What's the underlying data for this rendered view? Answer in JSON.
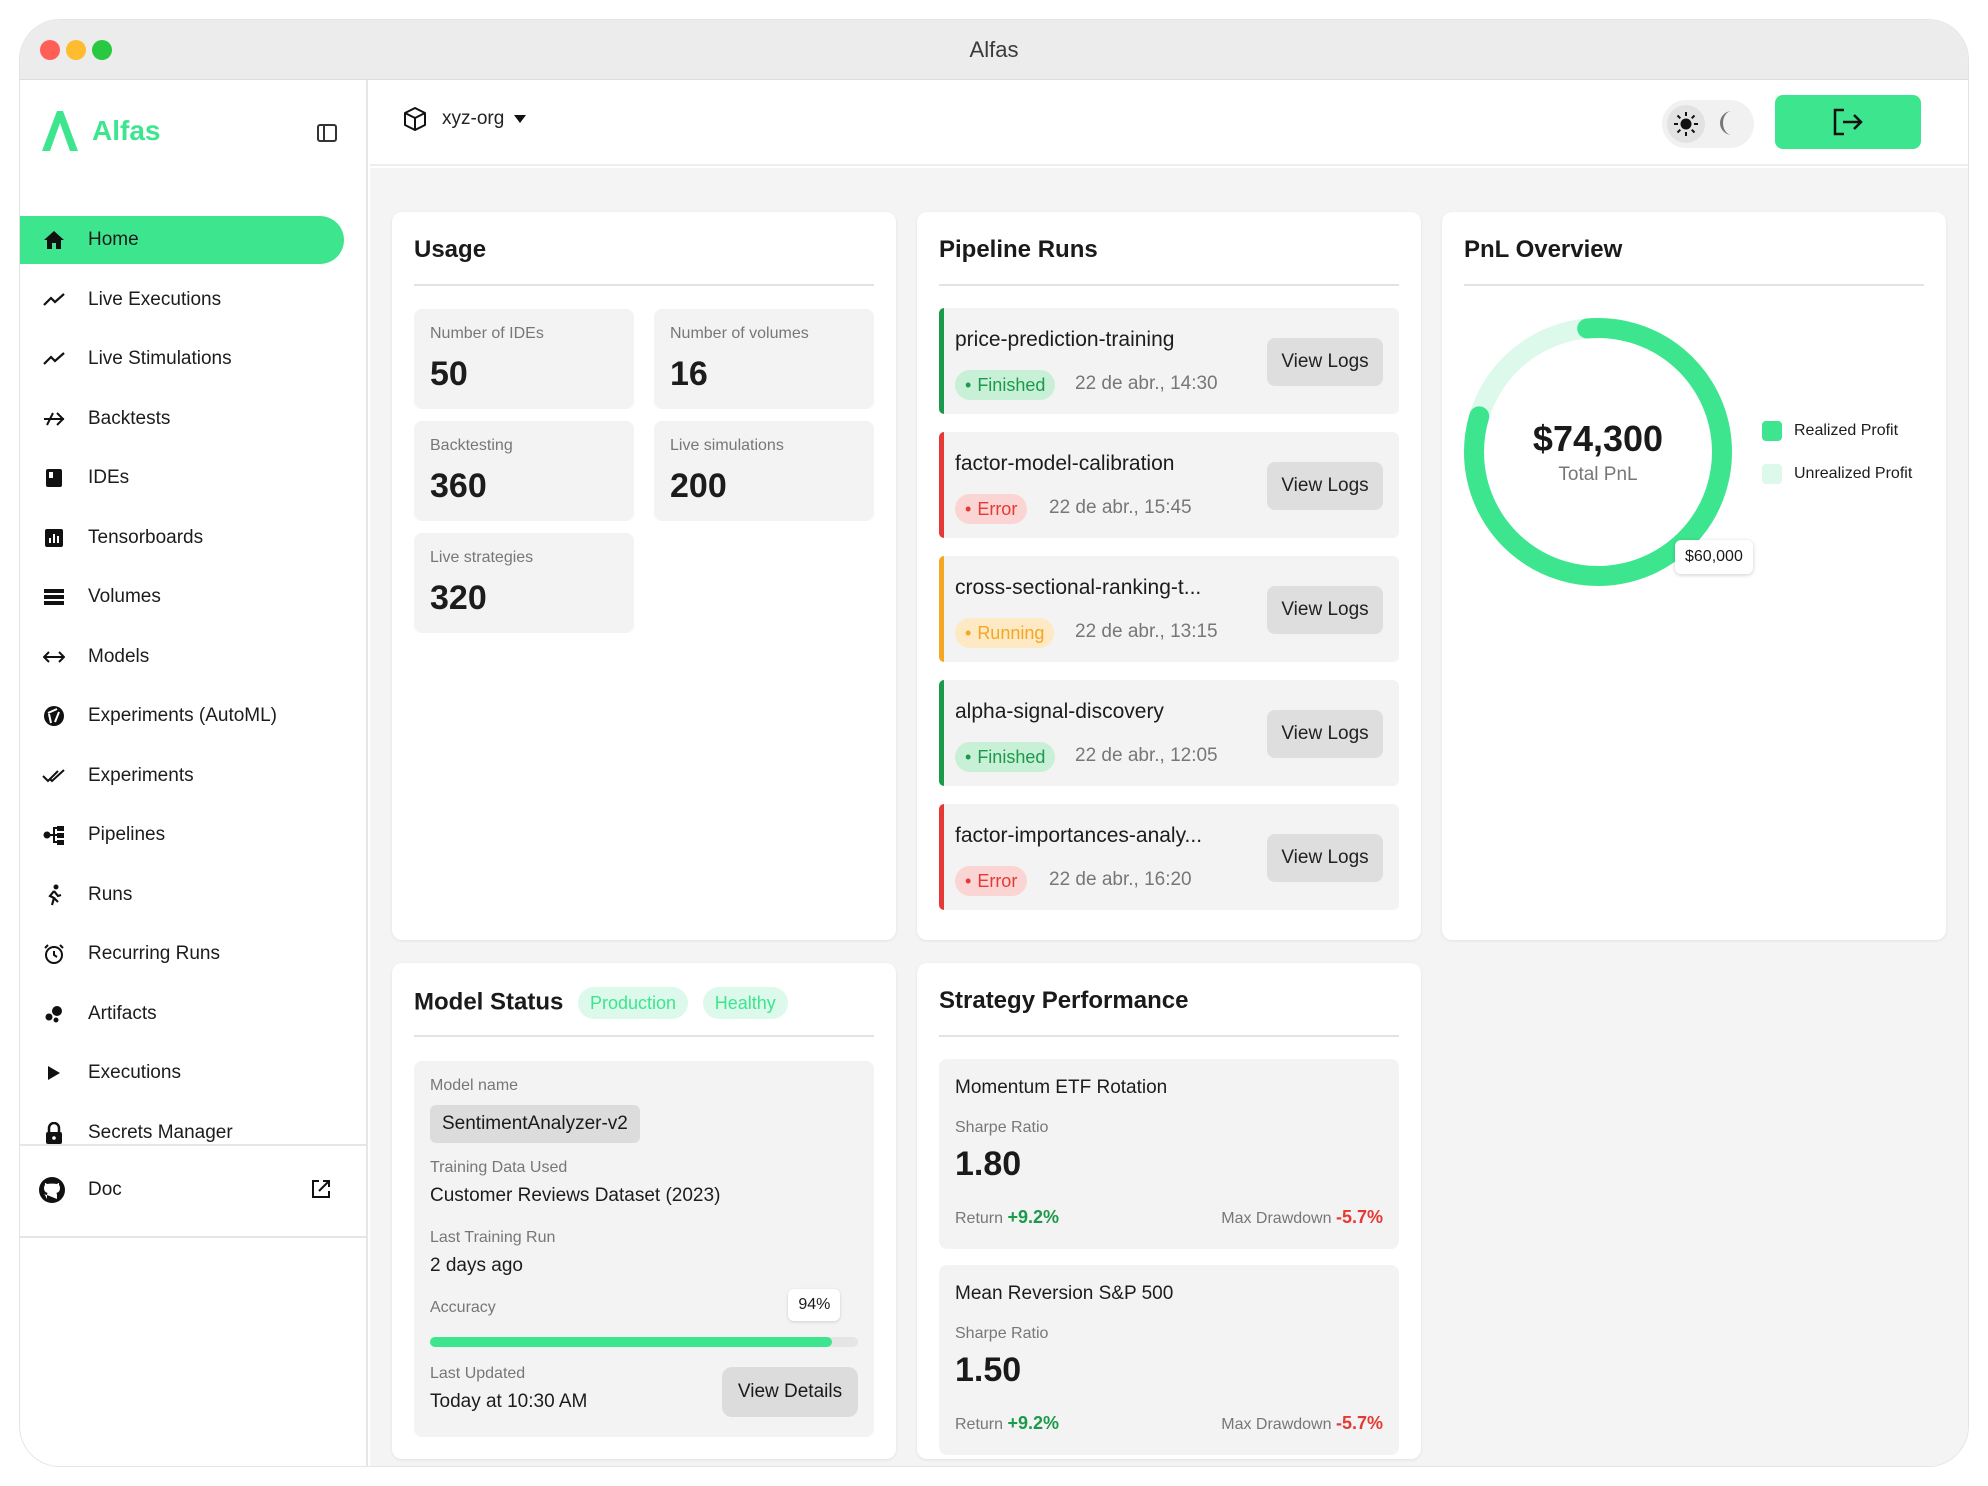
{
  "window": {
    "title": "Alfas"
  },
  "colors": {
    "accent": "#3de68e",
    "accent_light": "#ddf9eb",
    "finished": "#1b9a4b",
    "error": "#e53935",
    "running": "#f5a623"
  },
  "sidebar": {
    "brand": "Alfas",
    "items": [
      {
        "label": "Home",
        "icon": "home-icon",
        "active": true
      },
      {
        "label": "Live Executions",
        "icon": "trend-icon"
      },
      {
        "label": "Live Stimulations",
        "icon": "trend-icon"
      },
      {
        "label": "Backtests",
        "icon": "merge-arrows-icon"
      },
      {
        "label": "IDEs",
        "icon": "book-icon"
      },
      {
        "label": "Tensorboards",
        "icon": "chart-box-icon"
      },
      {
        "label": "Volumes",
        "icon": "storage-icon"
      },
      {
        "label": "Models",
        "icon": "code-arrows-icon"
      },
      {
        "label": "Experiments (AutoML)",
        "icon": "aperture-icon"
      },
      {
        "label": "Experiments",
        "icon": "double-check-icon"
      },
      {
        "label": "Pipelines",
        "icon": "pipeline-icon"
      },
      {
        "label": "Runs",
        "icon": "runner-icon"
      },
      {
        "label": "Recurring Runs",
        "icon": "alarm-icon"
      },
      {
        "label": "Artifacts",
        "icon": "bubbles-icon"
      },
      {
        "label": "Executions",
        "icon": "play-icon"
      },
      {
        "label": "Secrets Manager",
        "icon": "lock-icon"
      }
    ],
    "doc": {
      "label": "Doc",
      "icon": "github-icon"
    }
  },
  "topbar": {
    "org": "xyz-org"
  },
  "usage": {
    "title": "Usage",
    "stats": [
      {
        "label": "Number of IDEs",
        "value": "50"
      },
      {
        "label": "Number of volumes",
        "value": "16"
      },
      {
        "label": "Backtesting",
        "value": "360"
      },
      {
        "label": "Live simulations",
        "value": "200"
      },
      {
        "label": "Live strategies",
        "value": "320"
      }
    ]
  },
  "pipeline": {
    "title": "Pipeline Runs",
    "view_label": "View Logs",
    "runs": [
      {
        "name": "price-prediction-training",
        "status": "Finished",
        "date": "22 de abr., 14:30"
      },
      {
        "name": "factor-model-calibration",
        "status": "Error",
        "date": "22 de abr., 15:45"
      },
      {
        "name": "cross-sectional-ranking-t...",
        "status": "Running",
        "date": "22 de abr., 13:15"
      },
      {
        "name": "alpha-signal-discovery",
        "status": "Finished",
        "date": "22 de abr., 12:05"
      },
      {
        "name": "factor-importances-analy...",
        "status": "Error",
        "date": "22 de abr., 16:20"
      }
    ]
  },
  "pnl": {
    "title": "PnL Overview",
    "total": "$74,300",
    "total_label": "Total PnL",
    "tooltip": "$60,000",
    "realized_fraction": 0.81,
    "legend": [
      "Realized Profit",
      "Unrealized Profit"
    ]
  },
  "model": {
    "title": "Model Status",
    "badges": [
      "Production",
      "Healthy"
    ],
    "name_label": "Model name",
    "name": "SentimentAnalyzer-v2",
    "training_label": "Training Data Used",
    "training": "Customer Reviews Dataset (2023)",
    "last_run_label": "Last Training Run",
    "last_run": "2 days ago",
    "accuracy_label": "Accuracy",
    "accuracy": "94%",
    "accuracy_fraction": 0.94,
    "updated_label": "Last Updated",
    "updated": "Today at 10:30 AM",
    "details_button": "View Details"
  },
  "strategy": {
    "title": "Strategy Performance",
    "sharpe_label": "Sharpe Ratio",
    "return_label": "Return",
    "mdd_label": "Max Drawdown",
    "items": [
      {
        "name": "Momentum ETF Rotation",
        "sharpe": "1.80",
        "return": "+9.2%",
        "mdd": "-5.7%"
      },
      {
        "name": "Mean Reversion S&P 500",
        "sharpe": "1.50",
        "return": "+9.2%",
        "mdd": "-5.7%"
      }
    ]
  }
}
